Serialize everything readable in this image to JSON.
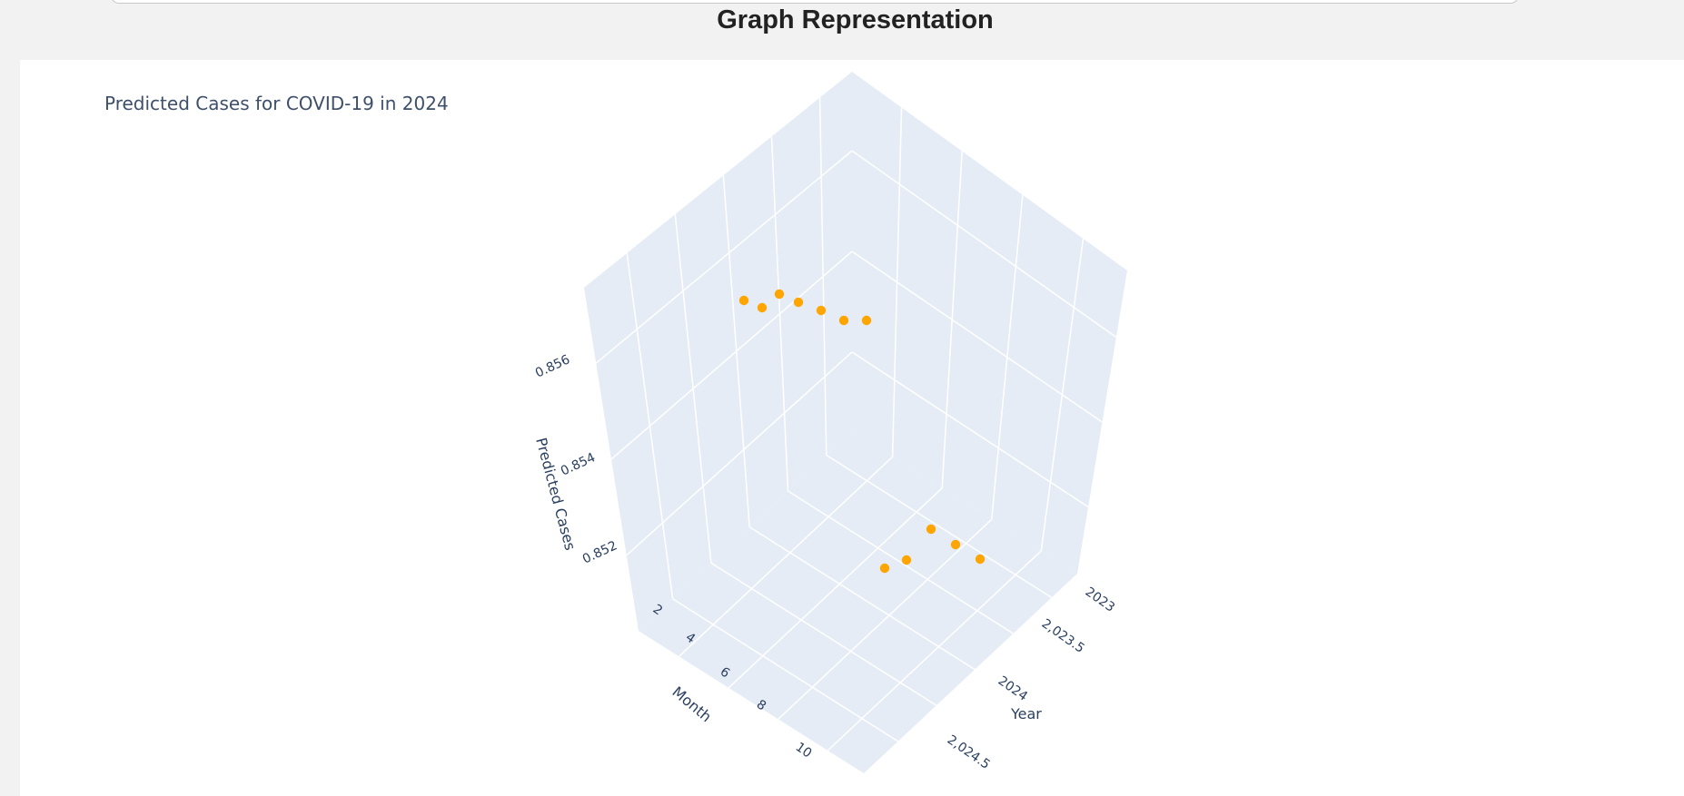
{
  "header": {
    "title": "Graph Representation"
  },
  "chart_data": {
    "type": "scatter",
    "title": "Predicted Cases for COVID-19 in 2024",
    "axes": {
      "x": {
        "label": "Month",
        "ticks": [
          "2",
          "4",
          "6",
          "8",
          "10"
        ]
      },
      "y": {
        "label": "Year",
        "ticks": [
          "2023",
          "2,023.5",
          "2024",
          "2,024.5"
        ]
      },
      "z": {
        "label": "Predicted Cases",
        "ticks": [
          "0.852",
          "0.854",
          "0.856"
        ]
      }
    },
    "series": [
      {
        "color": "#ffa500",
        "points": [
          {
            "year": 2024,
            "month": 1,
            "predicted": 0.8572
          },
          {
            "year": 2024,
            "month": 2,
            "predicted": 0.857
          },
          {
            "year": 2024,
            "month": 3,
            "predicted": 0.8574
          },
          {
            "year": 2024,
            "month": 4,
            "predicted": 0.8572
          },
          {
            "year": 2024,
            "month": 5,
            "predicted": 0.8571
          },
          {
            "year": 2024,
            "month": 6,
            "predicted": 0.857
          },
          {
            "year": 2024,
            "month": 7,
            "predicted": 0.8571
          },
          {
            "year": 2024,
            "month": 8,
            "predicted": 0.851
          },
          {
            "year": 2024,
            "month": 9,
            "predicted": 0.8512
          },
          {
            "year": 2024,
            "month": 10,
            "predicted": 0.8513
          },
          {
            "year": 2024,
            "month": 11,
            "predicted": 0.8515
          },
          {
            "year": 2024,
            "month": 12,
            "predicted": 0.8512
          }
        ]
      }
    ],
    "grid": true
  }
}
